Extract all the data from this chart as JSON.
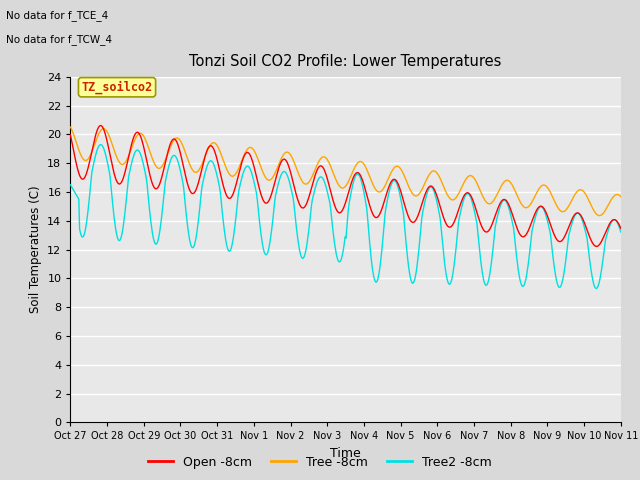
{
  "title": "Tonzi Soil CO2 Profile: Lower Temperatures",
  "ylabel": "Soil Temperatures (C)",
  "xlabel": "Time",
  "ylim": [
    0,
    24
  ],
  "yticks": [
    0,
    2,
    4,
    6,
    8,
    10,
    12,
    14,
    16,
    18,
    20,
    22,
    24
  ],
  "x_tick_labels": [
    "Oct 27",
    "Oct 28",
    "Oct 29",
    "Oct 30",
    "Oct 31",
    "Nov 1",
    "Nov 2",
    "Nov 3",
    "Nov 4",
    "Nov 5",
    "Nov 6",
    "Nov 7",
    "Nov 8",
    "Nov 9",
    "Nov 10",
    "Nov 11"
  ],
  "note1": "No data for f_TCE_4",
  "note2": "No data for f_TCW_4",
  "watermark": "TZ_soilco2",
  "line_colors": {
    "open": "#ff0000",
    "tree": "#ffa500",
    "tree2": "#00e0e0"
  },
  "legend_labels": [
    "Open -8cm",
    "Tree -8cm",
    "Tree2 -8cm"
  ],
  "fig_bg_color": "#d9d9d9",
  "plot_bg_color": "#e8e8e8",
  "grid_color": "#ffffff"
}
